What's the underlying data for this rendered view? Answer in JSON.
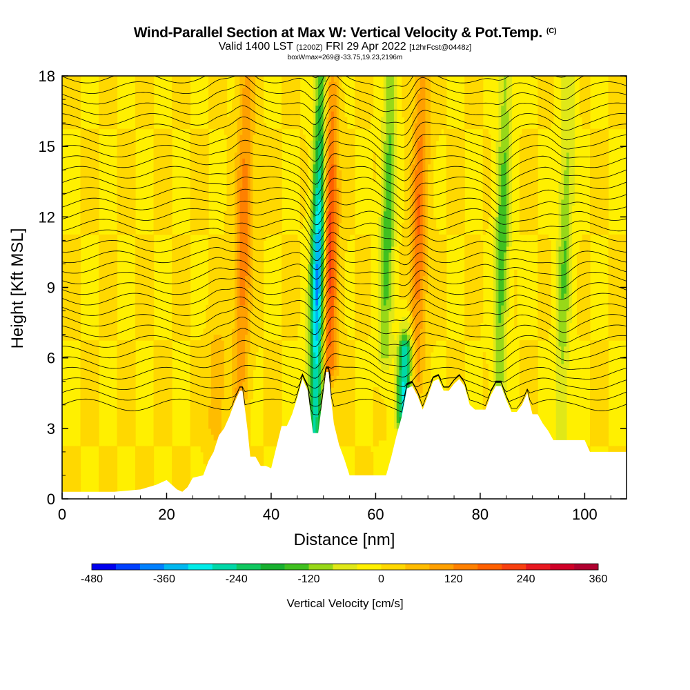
{
  "header": {
    "title_main": "Wind-Parallel Section at Max W: Vertical Velocity & Pot.Temp.",
    "title_copyright": "(C)",
    "valid_prefix": "Valid 1400 LST",
    "valid_utc": "(1200Z)",
    "valid_date": "FRI 29 Apr 2022",
    "valid_fcst": "[12hrFcst@0448z]",
    "box_info": "boxWmax=269@-33.75,19.23,2196m"
  },
  "chart_data": {
    "type": "heatmap",
    "title": "Wind-Parallel Section at Max W: Vertical Velocity & Pot.Temp.",
    "xlabel": "Distance [nm]",
    "ylabel": "Height [Kft MSL]",
    "xlim": [
      0,
      108
    ],
    "ylim": [
      0,
      18
    ],
    "xticks": [
      0,
      20,
      40,
      60,
      80,
      100
    ],
    "yticks": [
      0,
      3,
      6,
      9,
      12,
      15,
      18
    ],
    "colorbar": {
      "label": "Vertical Velocity [cm/s]",
      "range": [
        -480,
        360
      ],
      "ticks": [
        -480,
        -360,
        -240,
        -120,
        0,
        120,
        240,
        360
      ],
      "colors": [
        "#0000ee",
        "#0040ff",
        "#0080ff",
        "#00b8f0",
        "#00ece8",
        "#00d8a8",
        "#10c860",
        "#18b030",
        "#40c020",
        "#98d818",
        "#e0e818",
        "#fff000",
        "#ffd800",
        "#ffbc00",
        "#ffa000",
        "#ff8000",
        "#ff6000",
        "#f84010",
        "#e81820",
        "#d00028",
        "#b00030"
      ]
    },
    "terrain_profile": {
      "distance_nm": [
        0,
        5,
        10,
        15,
        18,
        20,
        21,
        22,
        23,
        24,
        25,
        27,
        28,
        29,
        30,
        31,
        32,
        33,
        34,
        34.5,
        35,
        35.5,
        36,
        37,
        38,
        39,
        40,
        41,
        42,
        43,
        44,
        45,
        46,
        47,
        48,
        49,
        50,
        50.5,
        51,
        51.5,
        52,
        53,
        54,
        55,
        56,
        57,
        58,
        59,
        60,
        61,
        62,
        63,
        64,
        65,
        66,
        67,
        68,
        69,
        70,
        71,
        72,
        73,
        74,
        75,
        76,
        77,
        78,
        79,
        80,
        81,
        82,
        83,
        84,
        85,
        86,
        87,
        88,
        89,
        90,
        91,
        92,
        93,
        94,
        95,
        96,
        97,
        98,
        99,
        100,
        101,
        102,
        103,
        104,
        105,
        106,
        107,
        108
      ],
      "height_kft": [
        0.3,
        0.3,
        0.3,
        0.4,
        0.6,
        0.8,
        0.6,
        0.4,
        0.3,
        0.5,
        0.9,
        1.0,
        1.6,
        2.0,
        2.7,
        3.0,
        3.5,
        4.1,
        4.6,
        4.6,
        3.8,
        2.9,
        1.8,
        1.8,
        1.4,
        1.4,
        1.3,
        2.2,
        3.1,
        3.1,
        3.6,
        4.3,
        5.1,
        4.6,
        2.8,
        2.8,
        4.5,
        5.4,
        5.4,
        4.2,
        3.2,
        2.3,
        1.7,
        1.0,
        1.0,
        1.0,
        1.0,
        1.0,
        1.0,
        1.0,
        1.0,
        1.8,
        2.7,
        3.5,
        4.7,
        4.8,
        4.4,
        3.8,
        4.4,
        5.0,
        5.1,
        4.6,
        4.6,
        4.9,
        5.1,
        4.8,
        4.0,
        3.8,
        3.8,
        3.8,
        4.4,
        4.8,
        4.8,
        4.2,
        3.7,
        3.7,
        4.0,
        4.5,
        3.6,
        3.6,
        3.2,
        2.9,
        2.5,
        2.5,
        2.5,
        2.5,
        2.5,
        2.5,
        2.5,
        2.0,
        2.0,
        2.0,
        2.0,
        2.0,
        2.0,
        2.0,
        2.0
      ]
    },
    "vertical_velocity_features": [
      {
        "kind": "updraft",
        "x_nm": 51.0,
        "top_kft": 18,
        "bottom_kft": 5.5,
        "tilt_nm_per_kft": 0.0,
        "max_cm_s": 269
      },
      {
        "kind": "updraft",
        "x_nm": 34.5,
        "top_kft": 18,
        "bottom_kft": 4.5,
        "max_cm_s": 150
      },
      {
        "kind": "updraft",
        "x_nm": 68.0,
        "top_kft": 18,
        "bottom_kft": 5.0,
        "max_cm_s": 160
      },
      {
        "kind": "updraft",
        "x_nm": 30.0,
        "top_kft": 6.5,
        "bottom_kft": 3.0,
        "max_cm_s": 80
      },
      {
        "kind": "downdraft",
        "x_nm": 49.0,
        "top_kft": 18,
        "bottom_kft": 2.0,
        "min_cm_s": -420
      },
      {
        "kind": "downdraft",
        "x_nm": 66.0,
        "top_kft": 6.5,
        "bottom_kft": 3.5,
        "min_cm_s": -300
      },
      {
        "kind": "downdraft",
        "x_nm": 62.0,
        "top_kft": 18,
        "bottom_kft": 6.0,
        "min_cm_s": -150
      },
      {
        "kind": "downdraft",
        "x_nm": 84.0,
        "top_kft": 18,
        "bottom_kft": 4.0,
        "min_cm_s": -150
      },
      {
        "kind": "downdraft",
        "x_nm": 96.0,
        "top_kft": 18,
        "bottom_kft": 2.5,
        "min_cm_s": -120
      }
    ],
    "isentropes": {
      "description": "Potential temperature contours (black lines)",
      "count": 33,
      "base_kft": 4.0,
      "spacing_kft": 0.45
    }
  }
}
